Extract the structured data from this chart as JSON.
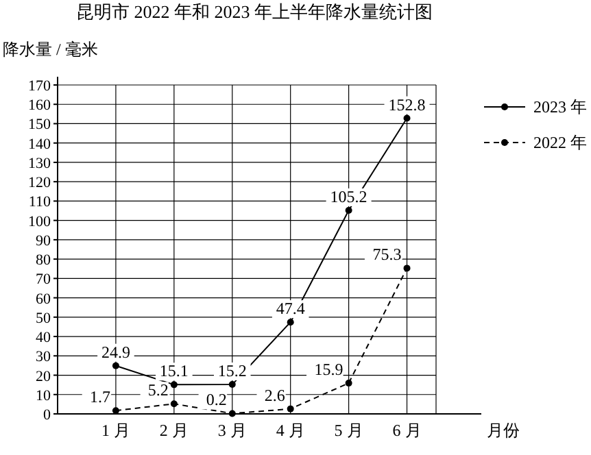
{
  "chart_data": {
    "type": "line",
    "title": "昆明市 2022 年和 2023 年上半年降水量统计图",
    "ylabel": "降水量 / 毫米",
    "xlabel": "月份",
    "categories": [
      "1 月",
      "2 月",
      "3 月",
      "4 月",
      "5 月",
      "6 月"
    ],
    "series": [
      {
        "name": "2023 年",
        "color": "#000000",
        "values": [
          24.9,
          15.1,
          15.2,
          47.4,
          105.2,
          152.8
        ],
        "line_style": "solid"
      },
      {
        "name": "2022 年",
        "color": "#000000",
        "values": [
          1.7,
          5.2,
          0.2,
          2.6,
          15.9,
          75.3
        ],
        "line_style": "dashed"
      }
    ],
    "ylim": [
      0,
      170
    ],
    "yticks": [
      0,
      10,
      20,
      30,
      40,
      50,
      60,
      70,
      80,
      90,
      100,
      110,
      120,
      130,
      140,
      150,
      160,
      170
    ],
    "grid": true,
    "legend": "right",
    "marker": "circle",
    "data_labels": true
  }
}
